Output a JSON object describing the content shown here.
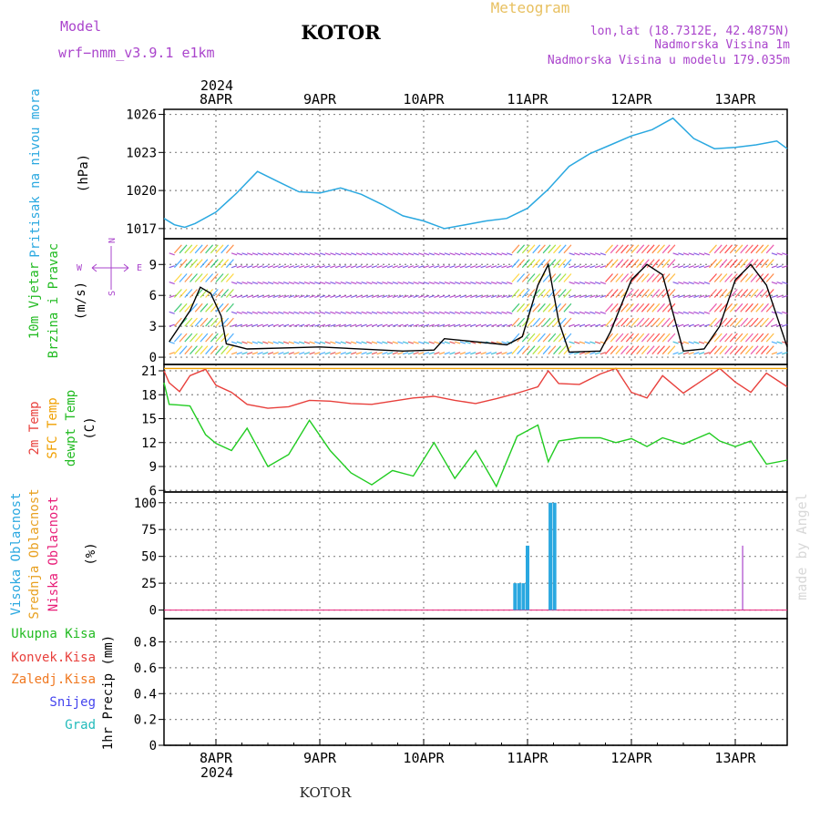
{
  "header": {
    "model_label": "Model",
    "model_name": "wrf−nmm_v3.9.1  e1km",
    "station": "KOTOR",
    "meteogram": "Meteogram",
    "lonlat": "lon,lat (18.7312E, 42.4875N)",
    "altitude": "Nadmorska Visina 1m",
    "model_altitude": "Nadmorska Visina u modelu 179.035m",
    "watermark": "made by Angel",
    "footer_station": "KOTOR"
  },
  "colors": {
    "pressure": "#2aa8e0",
    "wind_label": "#22bb22",
    "temp2m": "#e8403c",
    "sfc_temp": "#f0a000",
    "dewpt": "#22cc22",
    "high_cloud": "#2aa8e0",
    "mid_cloud": "#e8a020",
    "low_cloud": "#e81e78",
    "conv_rain": "#e8403c",
    "frozen": "#f07820",
    "snow": "#4444ee",
    "hail": "#22bbbb",
    "purple": "#aa44cc"
  },
  "time_axis": {
    "top_year": "2024",
    "bottom_year": "2024",
    "day_labels": [
      "8APR",
      "9APR",
      "10APR",
      "11APR",
      "12APR",
      "13APR"
    ]
  },
  "chart_data": [
    {
      "panel": "pressure",
      "type": "line",
      "label": "Pritisak na nivou mora",
      "units": "(hPa)",
      "yticks": [
        "1017",
        "1020",
        "1023",
        "1026"
      ],
      "ylim": [
        1016.2,
        1026.4
      ],
      "x": [
        7.5,
        7.6,
        7.7,
        7.8,
        8.0,
        8.2,
        8.4,
        8.6,
        8.8,
        9.0,
        9.2,
        9.4,
        9.6,
        9.8,
        10.0,
        10.2,
        10.4,
        10.6,
        10.8,
        11.0,
        11.2,
        11.4,
        11.6,
        11.8,
        12.0,
        12.2,
        12.4,
        12.6,
        12.8,
        13.0,
        13.2,
        13.4,
        13.5
      ],
      "values": [
        1017.8,
        1017.3,
        1017.1,
        1017.4,
        1018.3,
        1019.8,
        1021.5,
        1020.7,
        1019.9,
        1019.8,
        1020.2,
        1019.7,
        1018.9,
        1018.0,
        1017.6,
        1017.0,
        1017.3,
        1017.6,
        1017.8,
        1018.6,
        1020.1,
        1021.9,
        1022.9,
        1023.6,
        1024.3,
        1024.8,
        1025.7,
        1024.1,
        1023.3,
        1023.4,
        1023.6,
        1023.9,
        1023.3
      ]
    },
    {
      "panel": "wind",
      "type": "line",
      "label": "10m Vjetar Brzina i Pravac",
      "units": "(m/s)",
      "compass": {
        "n": "N",
        "s": "S",
        "e": "E",
        "w": "W"
      },
      "yticks": [
        "0",
        "3",
        "6",
        "9"
      ],
      "ylim": [
        -0.7,
        11.5
      ],
      "x": [
        7.55,
        7.75,
        7.85,
        7.95,
        8.05,
        8.1,
        8.3,
        9.0,
        9.8,
        10.1,
        10.2,
        10.8,
        10.95,
        11.1,
        11.2,
        11.3,
        11.4,
        11.7,
        11.8,
        12.0,
        12.15,
        12.3,
        12.5,
        12.7,
        12.85,
        13.0,
        13.15,
        13.3,
        13.5
      ],
      "values": [
        1.5,
        4.5,
        6.8,
        6.2,
        4.0,
        1.3,
        0.8,
        1.0,
        0.6,
        0.7,
        1.8,
        1.2,
        2.0,
        7.0,
        9.0,
        3.5,
        0.5,
        0.6,
        2.5,
        7.5,
        9.0,
        8.0,
        0.6,
        0.8,
        3.0,
        7.5,
        9.0,
        7.0,
        1.0
      ]
    },
    {
      "panel": "temperature",
      "type": "line",
      "label_2m": "2m Temp",
      "label_sfc": "SFC Temp",
      "label_dew": "dewpt Temp",
      "units": "(C)",
      "yticks": [
        "6",
        "9",
        "12",
        "15",
        "18",
        "21"
      ],
      "ylim": [
        5.8,
        21.8
      ],
      "x": [
        7.5,
        7.55,
        7.65,
        7.75,
        7.9,
        8.0,
        8.15,
        8.3,
        8.5,
        8.7,
        8.9,
        9.1,
        9.3,
        9.5,
        9.7,
        9.9,
        10.1,
        10.3,
        10.5,
        10.7,
        10.9,
        11.1,
        11.2,
        11.3,
        11.5,
        11.7,
        11.85,
        12.0,
        12.15,
        12.3,
        12.5,
        12.75,
        12.85,
        13.0,
        13.15,
        13.3,
        13.5
      ],
      "series": [
        {
          "name": "2m Temp",
          "values": [
            21.0,
            19.5,
            18.4,
            20.4,
            21.2,
            19.2,
            18.3,
            16.8,
            16.3,
            16.5,
            17.3,
            17.2,
            16.9,
            16.8,
            17.2,
            17.6,
            17.8,
            17.3,
            16.9,
            17.5,
            18.2,
            19.0,
            21.0,
            19.4,
            19.3,
            20.6,
            21.3,
            18.3,
            17.6,
            20.4,
            18.2,
            20.4,
            21.3,
            19.6,
            18.3,
            20.7,
            19.0
          ]
        },
        {
          "name": "SFC Temp",
          "values": [
            21.3,
            21.3,
            21.3,
            21.3,
            21.3,
            21.3,
            21.3,
            21.3,
            21.3,
            21.3,
            21.3,
            21.3,
            21.3,
            21.3,
            21.3,
            21.3,
            21.3,
            21.3,
            21.3,
            21.3,
            21.3,
            21.3,
            21.3,
            21.3,
            21.3,
            21.3,
            21.3,
            21.3,
            21.3,
            21.3,
            21.3,
            21.3,
            21.3,
            21.3,
            21.3,
            21.3,
            21.3
          ]
        },
        {
          "name": "dewpt Temp",
          "values": [
            19.5,
            16.8,
            16.7,
            16.6,
            13.0,
            11.9,
            11.0,
            13.8,
            9.0,
            10.5,
            14.8,
            11.0,
            8.2,
            6.7,
            8.5,
            7.8,
            12.0,
            7.5,
            11.0,
            6.5,
            12.8,
            14.2,
            9.6,
            12.2,
            12.6,
            12.6,
            12.0,
            12.5,
            11.5,
            12.6,
            11.8,
            13.2,
            12.2,
            11.5,
            12.2,
            9.3,
            9.8
          ]
        }
      ]
    },
    {
      "panel": "cloud",
      "type": "bar",
      "label_high": "Visoka Oblacnost",
      "label_mid": "Srednja Oblacnost",
      "label_low": "Niska Oblacnost",
      "units": "(%)",
      "yticks": [
        "0",
        "25",
        "50",
        "75",
        "100"
      ],
      "ylim": [
        -8,
        110
      ],
      "series": [
        {
          "name": "Visoka Oblacnost",
          "x": [
            10.88,
            10.92,
            10.96,
            11.0,
            11.22,
            11.26
          ],
          "values": [
            25,
            25,
            25,
            60,
            100,
            100
          ]
        },
        {
          "name": "Niska Oblacnost",
          "x": [
            13.07
          ],
          "values": [
            60
          ]
        }
      ]
    },
    {
      "panel": "precip",
      "type": "line",
      "label_total": "Ukupna Kisa",
      "label_conv": "Konvek.Kisa",
      "label_frozen": "Zaledj.Kisa",
      "label_snow": "Snijeg",
      "label_hail": "Grad",
      "units": "1hr Precip (mm)",
      "yticks": [
        "0",
        "0.2",
        "0.4",
        "0.6",
        "0.8"
      ],
      "ylim": [
        0,
        0.98
      ],
      "x": [
        7.5,
        13.5
      ],
      "values": [
        0,
        0
      ]
    }
  ]
}
